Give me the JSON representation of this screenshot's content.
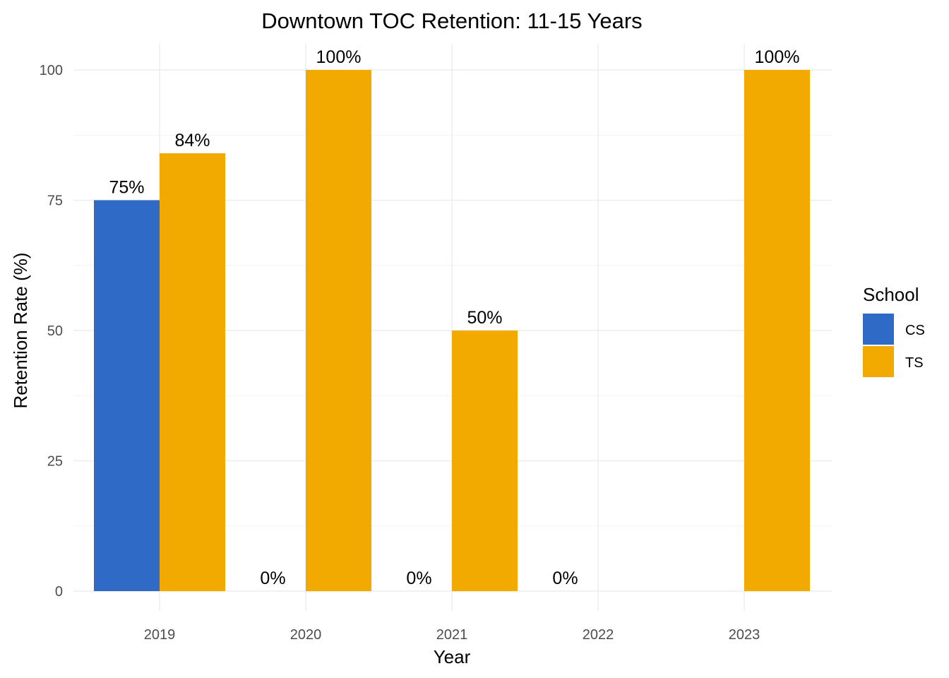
{
  "chart_data": {
    "type": "bar",
    "title": "Downtown TOC Retention: 11-15 Years",
    "xlabel": "Year",
    "ylabel": "Retention Rate (%)",
    "ylim": [
      0,
      100
    ],
    "yticks": [
      "0",
      "25",
      "50",
      "75",
      "100"
    ],
    "categories": [
      "2019",
      "2020",
      "2021",
      "2022",
      "2023"
    ],
    "grid": true,
    "legend": {
      "title": "School",
      "placement": "right"
    },
    "series": [
      {
        "name": "CS",
        "color": "#2E6AC6",
        "values": [
          75,
          0,
          0,
          0,
          null
        ],
        "labels": [
          "75%",
          "0%",
          "0%",
          "0%",
          null
        ]
      },
      {
        "name": "TS",
        "color": "#F2A900",
        "values": [
          84,
          100,
          50,
          null,
          100
        ],
        "labels": [
          "84%",
          "100%",
          "50%",
          null,
          "100%"
        ]
      }
    ]
  }
}
